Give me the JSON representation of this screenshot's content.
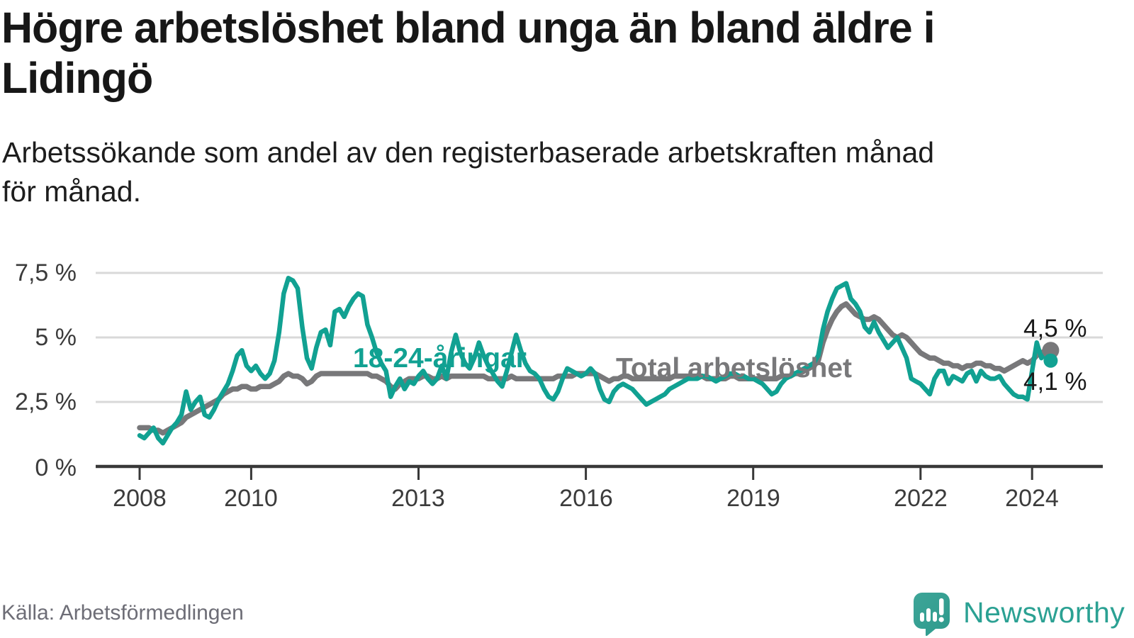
{
  "header": {
    "title_line1": "Högre arbetslöshet bland unga än bland äldre i",
    "title_line2": "Lidingö",
    "subtitle_line1": "Arbetssökande som andel av den registerbaserade arbetskraften månad",
    "subtitle_line2": "för månad."
  },
  "footer": {
    "source": "Källa: Arbetsförmedlingen",
    "brand_name": "Newsworthy"
  },
  "colors": {
    "youth_line": "#11a192",
    "total_line": "#78787a",
    "gridline": "#d9d9d9",
    "axis": "#383838",
    "brand_teal": "#2ba193",
    "logo_fill_light": "#3da598",
    "logo_fill_dark": "#2e9a8c"
  },
  "chart_data": {
    "type": "line",
    "unit": "%",
    "frequency": "monthly",
    "x_start": "2008-01",
    "x_end": "2024-05",
    "grid": true,
    "ylim": [
      0,
      8
    ],
    "y_ticks": [
      "7,5 %",
      "5 %",
      "2,5 %",
      "0 %"
    ],
    "y_tick_values": [
      7.5,
      5,
      2.5,
      0
    ],
    "x_tick_labels": [
      "2008",
      "2010",
      "2013",
      "2016",
      "2019",
      "2022",
      "2024"
    ],
    "x_tick_years": [
      2008,
      2010,
      2013,
      2016,
      2019,
      2022,
      2024
    ],
    "series": [
      {
        "name": "18-24-åringar",
        "label": "18-24-åringar",
        "color": "#11a192",
        "end_label": "4,1 %",
        "end_value": 4.1,
        "values": [
          1.2,
          1.1,
          1.3,
          1.5,
          1.1,
          0.9,
          1.2,
          1.5,
          1.7,
          2.0,
          2.9,
          2.2,
          2.5,
          2.7,
          2.0,
          1.9,
          2.2,
          2.6,
          2.9,
          3.2,
          3.7,
          4.3,
          4.5,
          3.9,
          3.7,
          3.9,
          3.6,
          3.4,
          3.6,
          4.1,
          5.2,
          6.7,
          7.3,
          7.2,
          6.9,
          5.4,
          4.2,
          3.8,
          4.6,
          5.2,
          5.3,
          4.7,
          6.0,
          6.1,
          5.8,
          6.2,
          6.5,
          6.7,
          6.6,
          5.5,
          5.0,
          4.4,
          4.0,
          3.7,
          2.7,
          3.1,
          3.4,
          3.0,
          3.3,
          3.2,
          3.5,
          3.7,
          3.4,
          3.2,
          3.4,
          3.9,
          3.4,
          4.4,
          5.1,
          4.4,
          4.0,
          3.8,
          4.2,
          4.8,
          4.3,
          3.9,
          3.6,
          3.3,
          3.1,
          3.7,
          4.4,
          5.1,
          4.5,
          4.0,
          3.7,
          3.6,
          3.4,
          3.0,
          2.7,
          2.6,
          2.9,
          3.4,
          3.8,
          3.7,
          3.6,
          3.5,
          3.6,
          3.8,
          3.6,
          3.0,
          2.6,
          2.5,
          2.9,
          3.1,
          3.2,
          3.1,
          3.0,
          2.8,
          2.6,
          2.4,
          2.5,
          2.6,
          2.7,
          2.8,
          3.0,
          3.1,
          3.2,
          3.3,
          3.4,
          3.4,
          3.4,
          3.5,
          3.5,
          3.4,
          3.3,
          3.4,
          3.5,
          3.6,
          3.6,
          3.5,
          3.5,
          3.4,
          3.4,
          3.3,
          3.2,
          3.0,
          2.8,
          2.9,
          3.2,
          3.4,
          3.5,
          3.6,
          3.7,
          3.8,
          3.9,
          4.0,
          4.3,
          5.3,
          6.0,
          6.5,
          6.9,
          7.0,
          7.1,
          6.5,
          6.3,
          6.0,
          5.4,
          5.2,
          5.6,
          5.2,
          4.9,
          4.6,
          4.8,
          5.0,
          4.6,
          4.2,
          3.4,
          3.3,
          3.2,
          3.0,
          2.8,
          3.4,
          3.7,
          3.7,
          3.2,
          3.5,
          3.4,
          3.3,
          3.6,
          3.7,
          3.3,
          3.7,
          3.5,
          3.4,
          3.4,
          3.5,
          3.2,
          3.0,
          2.8,
          2.7,
          2.7,
          2.6,
          3.7,
          4.8,
          4.2,
          4.4,
          4.1
        ]
      },
      {
        "name": "Total arbetslöshet",
        "label": "Total arbetslöshet",
        "color": "#78787a",
        "end_label": "4,5 %",
        "end_value": 4.5,
        "values": [
          1.5,
          1.5,
          1.5,
          1.4,
          1.4,
          1.3,
          1.4,
          1.5,
          1.6,
          1.7,
          1.9,
          2.0,
          2.1,
          2.2,
          2.3,
          2.4,
          2.5,
          2.6,
          2.8,
          2.9,
          3.0,
          3.0,
          3.1,
          3.1,
          3.0,
          3.0,
          3.1,
          3.1,
          3.1,
          3.2,
          3.3,
          3.5,
          3.6,
          3.5,
          3.5,
          3.4,
          3.2,
          3.3,
          3.5,
          3.6,
          3.6,
          3.6,
          3.6,
          3.6,
          3.6,
          3.6,
          3.6,
          3.6,
          3.6,
          3.6,
          3.5,
          3.5,
          3.4,
          3.3,
          3.1,
          3.0,
          3.2,
          3.3,
          3.4,
          3.4,
          3.4,
          3.5,
          3.5,
          3.4,
          3.4,
          3.5,
          3.4,
          3.5,
          3.5,
          3.5,
          3.5,
          3.5,
          3.5,
          3.5,
          3.5,
          3.4,
          3.4,
          3.4,
          3.4,
          3.4,
          3.5,
          3.4,
          3.4,
          3.4,
          3.4,
          3.4,
          3.4,
          3.4,
          3.4,
          3.4,
          3.5,
          3.5,
          3.5,
          3.5,
          3.6,
          3.6,
          3.6,
          3.6,
          3.6,
          3.5,
          3.4,
          3.3,
          3.4,
          3.4,
          3.5,
          3.5,
          3.4,
          3.4,
          3.4,
          3.4,
          3.4,
          3.4,
          3.4,
          3.4,
          3.4,
          3.5,
          3.5,
          3.5,
          3.5,
          3.5,
          3.5,
          3.5,
          3.4,
          3.4,
          3.4,
          3.4,
          3.4,
          3.5,
          3.5,
          3.4,
          3.4,
          3.4,
          3.4,
          3.4,
          3.4,
          3.4,
          3.4,
          3.4,
          3.5,
          3.5,
          3.5,
          3.6,
          3.6,
          3.7,
          3.8,
          3.9,
          4.1,
          4.8,
          5.3,
          5.7,
          6.0,
          6.2,
          6.3,
          6.1,
          5.9,
          5.8,
          5.7,
          5.7,
          5.8,
          5.7,
          5.5,
          5.3,
          5.1,
          5.0,
          5.1,
          5.0,
          4.8,
          4.6,
          4.4,
          4.3,
          4.2,
          4.2,
          4.1,
          4.0,
          4.0,
          3.9,
          3.9,
          3.8,
          3.9,
          3.9,
          4.0,
          4.0,
          3.9,
          3.9,
          3.8,
          3.8,
          3.7,
          3.8,
          3.9,
          4.0,
          4.1,
          4.0,
          4.1,
          4.3,
          4.4,
          4.5,
          4.5
        ]
      }
    ]
  }
}
